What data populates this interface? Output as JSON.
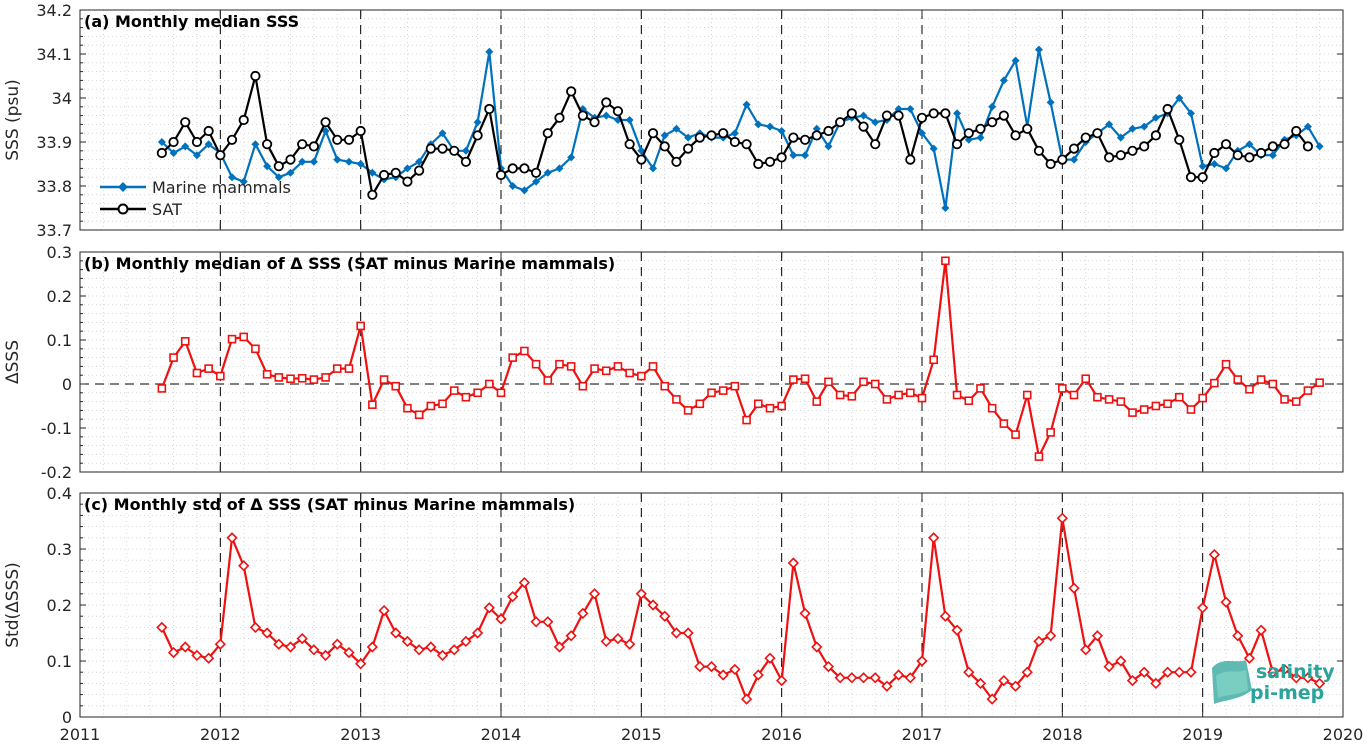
{
  "chart_data": [
    {
      "type": "line",
      "title": "(a) Monthly median SSS",
      "xlabel": "",
      "ylabel": "SSS (psu)",
      "xlim": [
        2011,
        2020
      ],
      "ylim": [
        33.7,
        34.2
      ],
      "xticks": [
        "2011",
        "2012",
        "2013",
        "2014",
        "2015",
        "2016",
        "2017",
        "2018",
        "2019",
        "2020"
      ],
      "yticks": [
        "33.7",
        "33.8",
        "33.9",
        "34",
        "34.1",
        "34.2"
      ],
      "grid": "dotted",
      "legend": "left",
      "start_year": 2011,
      "start_month": 8,
      "series": [
        {
          "name": "Marine mammals",
          "color": "#0072BD",
          "marker": "diamond-filled",
          "values": [
            33.9,
            33.875,
            33.89,
            33.87,
            33.895,
            33.875,
            33.82,
            33.81,
            33.895,
            33.845,
            33.82,
            33.83,
            33.855,
            33.855,
            33.925,
            33.86,
            33.855,
            33.85,
            33.83,
            33.815,
            33.82,
            33.84,
            33.855,
            33.895,
            33.92,
            33.88,
            33.88,
            33.945,
            34.105,
            33.84,
            33.8,
            33.79,
            33.81,
            33.83,
            33.84,
            33.865,
            33.975,
            33.955,
            33.96,
            33.95,
            33.95,
            33.88,
            33.84,
            33.915,
            33.93,
            33.91,
            33.92,
            33.91,
            33.91,
            33.92,
            33.985,
            33.94,
            33.935,
            33.925,
            33.87,
            33.87,
            33.93,
            33.89,
            33.945,
            33.955,
            33.96,
            33.945,
            33.95,
            33.975,
            33.975,
            33.92,
            33.885,
            33.75,
            33.965,
            33.905,
            33.91,
            33.98,
            34.04,
            34.085,
            33.935,
            34.11,
            33.99,
            33.86,
            33.86,
            33.9,
            33.92,
            33.94,
            33.91,
            33.93,
            33.935,
            33.955,
            33.965,
            34.0,
            33.965,
            33.845,
            33.85,
            33.84,
            33.88,
            33.895,
            33.87,
            33.87,
            33.905,
            33.915,
            33.935,
            33.89
          ]
        },
        {
          "name": "SAT",
          "color": "#000000",
          "marker": "circle-open",
          "values": [
            33.875,
            33.9,
            33.945,
            33.9,
            33.925,
            33.87,
            33.905,
            33.95,
            34.05,
            33.895,
            33.845,
            33.86,
            33.895,
            33.89,
            33.945,
            33.905,
            33.905,
            33.925,
            33.78,
            33.825,
            33.83,
            33.81,
            33.835,
            33.885,
            33.885,
            33.88,
            33.855,
            33.915,
            33.975,
            33.825,
            33.84,
            33.84,
            33.83,
            33.92,
            33.955,
            34.015,
            33.96,
            33.945,
            33.99,
            33.97,
            33.895,
            33.86,
            33.92,
            33.89,
            33.855,
            33.885,
            33.91,
            33.915,
            33.92,
            33.9,
            33.895,
            33.85,
            33.855,
            33.865,
            33.91,
            33.905,
            33.915,
            33.925,
            33.945,
            33.965,
            33.935,
            33.895,
            33.96,
            33.96,
            33.86,
            33.955,
            33.965,
            33.965,
            33.895,
            33.92,
            33.93,
            33.945,
            33.96,
            33.915,
            33.93,
            33.88,
            33.85,
            33.86,
            33.885,
            33.91,
            33.92,
            33.865,
            33.87,
            33.88,
            33.89,
            33.915,
            33.975,
            33.905,
            33.82,
            33.82,
            33.875,
            33.895,
            33.87,
            33.865,
            33.875,
            33.89,
            33.895,
            33.925,
            33.89
          ]
        }
      ]
    },
    {
      "type": "line",
      "title": "(b) Monthly median of Δ SSS (SAT minus Marine mammals)",
      "xlabel": "",
      "ylabel": "ΔSSS",
      "xlim": [
        2011,
        2020
      ],
      "ylim": [
        -0.2,
        0.3
      ],
      "yticks": [
        "-0.2",
        "-0.1",
        "0",
        "0.1",
        "0.2",
        "0.3"
      ],
      "grid": "dotted",
      "reference_line": 0,
      "start_year": 2011,
      "start_month": 8,
      "series": [
        {
          "color": "#EE1111",
          "marker": "square-open",
          "values": [
            -0.01,
            0.06,
            0.097,
            0.025,
            0.035,
            0.018,
            0.102,
            0.107,
            0.08,
            0.022,
            0.015,
            0.012,
            0.013,
            0.01,
            0.015,
            0.035,
            0.035,
            0.132,
            -0.047,
            0.01,
            -0.005,
            -0.055,
            -0.07,
            -0.05,
            -0.045,
            -0.015,
            -0.03,
            -0.02,
            0.0,
            -0.02,
            0.06,
            0.075,
            0.045,
            0.008,
            0.045,
            0.04,
            -0.005,
            0.035,
            0.03,
            0.04,
            0.025,
            0.018,
            0.04,
            -0.005,
            -0.035,
            -0.06,
            -0.045,
            -0.02,
            -0.015,
            -0.005,
            -0.082,
            -0.045,
            -0.055,
            -0.05,
            0.01,
            0.012,
            -0.04,
            0.005,
            -0.025,
            -0.028,
            0.005,
            0.0,
            -0.035,
            -0.025,
            -0.02,
            -0.032,
            0.055,
            0.28,
            -0.025,
            -0.038,
            -0.01,
            -0.055,
            -0.09,
            -0.115,
            -0.025,
            -0.165,
            -0.11,
            -0.01,
            -0.025,
            0.012,
            -0.03,
            -0.035,
            -0.04,
            -0.065,
            -0.058,
            -0.05,
            -0.045,
            -0.03,
            -0.058,
            -0.032,
            0.002,
            0.045,
            0.01,
            -0.012,
            0.01,
            0.0,
            -0.035,
            -0.04,
            -0.015,
            0.003
          ]
        }
      ]
    },
    {
      "type": "line",
      "title": "(c) Monthly std of Δ SSS (SAT minus Marine mammals)",
      "xlabel": "",
      "ylabel": "Std(ΔSSS)",
      "xlim": [
        2011,
        2020
      ],
      "ylim": [
        0,
        0.4
      ],
      "yticks": [
        "0",
        "0.1",
        "0.2",
        "0.3",
        "0.4"
      ],
      "grid": "dotted",
      "start_year": 2011,
      "start_month": 8,
      "series": [
        {
          "color": "#EE1111",
          "marker": "diamond-open",
          "values": [
            0.16,
            0.115,
            0.125,
            0.11,
            0.105,
            0.13,
            0.32,
            0.27,
            0.16,
            0.15,
            0.13,
            0.125,
            0.14,
            0.12,
            0.11,
            0.13,
            0.115,
            0.095,
            0.125,
            0.19,
            0.15,
            0.135,
            0.12,
            0.125,
            0.11,
            0.12,
            0.135,
            0.15,
            0.195,
            0.175,
            0.215,
            0.24,
            0.17,
            0.17,
            0.125,
            0.145,
            0.185,
            0.22,
            0.135,
            0.14,
            0.13,
            0.22,
            0.2,
            0.18,
            0.15,
            0.15,
            0.09,
            0.09,
            0.075,
            0.085,
            0.032,
            0.075,
            0.105,
            0.065,
            0.275,
            0.185,
            0.125,
            0.09,
            0.07,
            0.07,
            0.07,
            0.07,
            0.055,
            0.075,
            0.07,
            0.1,
            0.32,
            0.18,
            0.155,
            0.08,
            0.06,
            0.032,
            0.065,
            0.055,
            0.08,
            0.135,
            0.145,
            0.355,
            0.23,
            0.12,
            0.145,
            0.09,
            0.1,
            0.065,
            0.08,
            0.06,
            0.08,
            0.08,
            0.08,
            0.195,
            0.29,
            0.205,
            0.145,
            0.105,
            0.155,
            0.08,
            0.085,
            0.07,
            0.07,
            0.06
          ]
        }
      ]
    }
  ],
  "logo": {
    "line1": "salinity",
    "line2": "pi-mep"
  },
  "colors": {
    "marine_mammals": "#0072BD",
    "sat": "#000000",
    "delta": "#EE1111",
    "logo": "#2aa39a"
  }
}
